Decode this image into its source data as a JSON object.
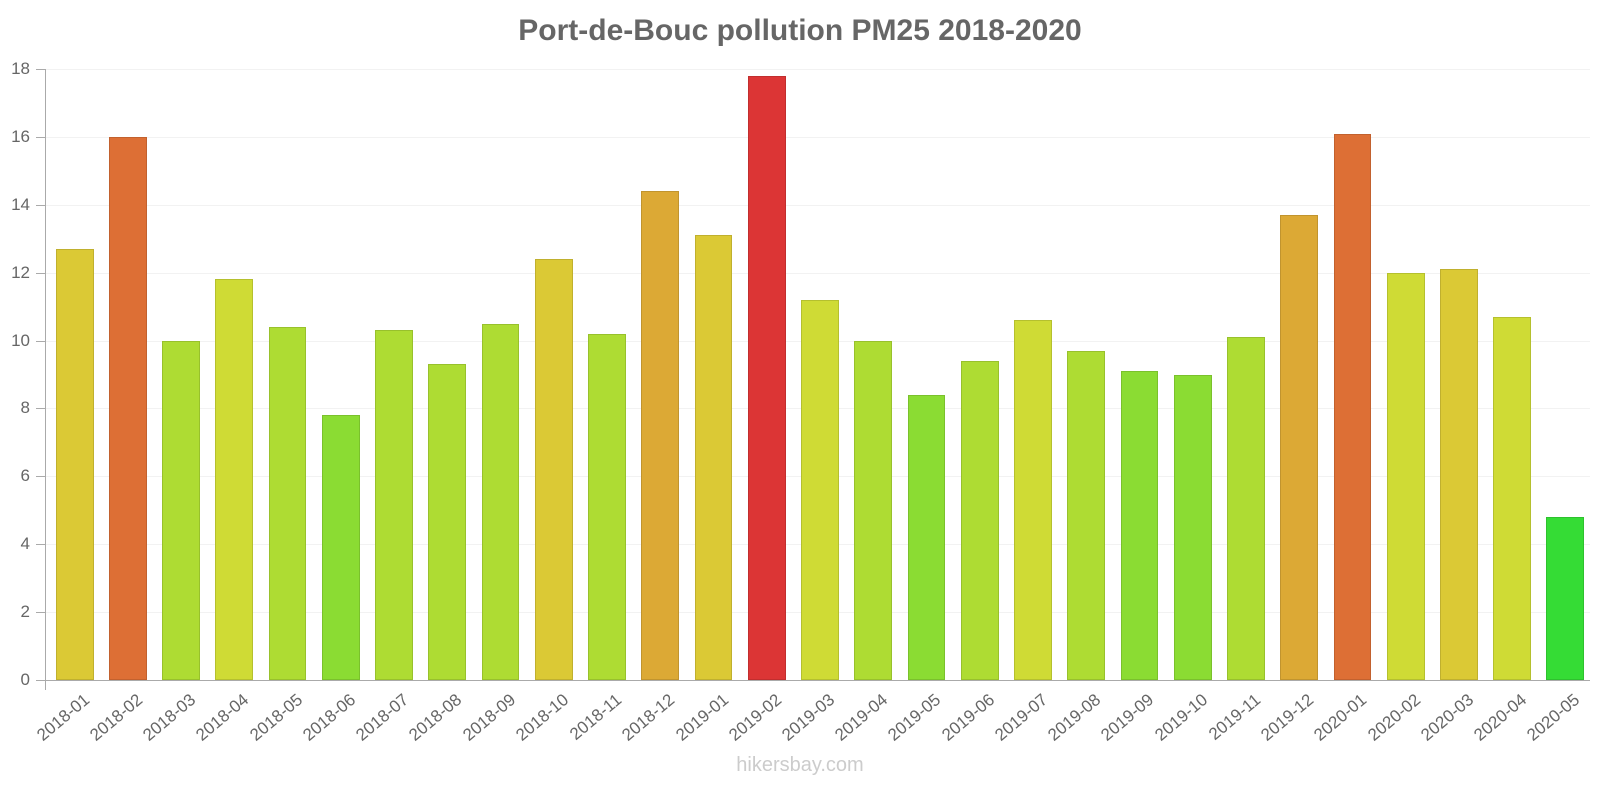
{
  "chart_data": {
    "type": "bar",
    "title": "Port-de-Bouc pollution PM25 2018-2020",
    "xlabel": "",
    "ylabel": "",
    "ylim": [
      0,
      18
    ],
    "yticks": [
      0,
      2,
      4,
      6,
      8,
      10,
      12,
      14,
      16,
      18
    ],
    "grid": true,
    "legend": "none",
    "categories": [
      "2018-01",
      "2018-02",
      "2018-03",
      "2018-04",
      "2018-05",
      "2018-06",
      "2018-07",
      "2018-08",
      "2018-09",
      "2018-10",
      "2018-11",
      "2018-12",
      "2019-01",
      "2019-02",
      "2019-03",
      "2019-04",
      "2019-05",
      "2019-06",
      "2019-07",
      "2019-08",
      "2019-09",
      "2019-10",
      "2019-11",
      "2019-12",
      "2020-01",
      "2020-02",
      "2020-03",
      "2020-04",
      "2020-05"
    ],
    "values": [
      12.7,
      16.0,
      10.0,
      11.8,
      10.4,
      7.8,
      10.3,
      9.3,
      10.5,
      12.4,
      10.2,
      14.4,
      13.1,
      17.8,
      11.2,
      10.0,
      8.4,
      9.4,
      10.6,
      9.7,
      9.1,
      9.0,
      10.1,
      13.7,
      16.1,
      12.0,
      12.1,
      10.7,
      4.8
    ],
    "colors": [
      "#dbc935",
      "#dd6f35",
      "#aedc33",
      "#cfdb35",
      "#aedc33",
      "#8bdc33",
      "#aedc33",
      "#aedc33",
      "#aedc33",
      "#dbc935",
      "#aedc33",
      "#dca935",
      "#dbc935",
      "#dc3535",
      "#cfdb35",
      "#aedc33",
      "#8bdc33",
      "#aedc33",
      "#cfdb35",
      "#aedc33",
      "#8bdc33",
      "#8bdc33",
      "#aedc33",
      "#dca935",
      "#dd6f35",
      "#cfdb35",
      "#dbc935",
      "#cfdb35",
      "#35dc35"
    ]
  },
  "watermark": "hikersbay.com"
}
